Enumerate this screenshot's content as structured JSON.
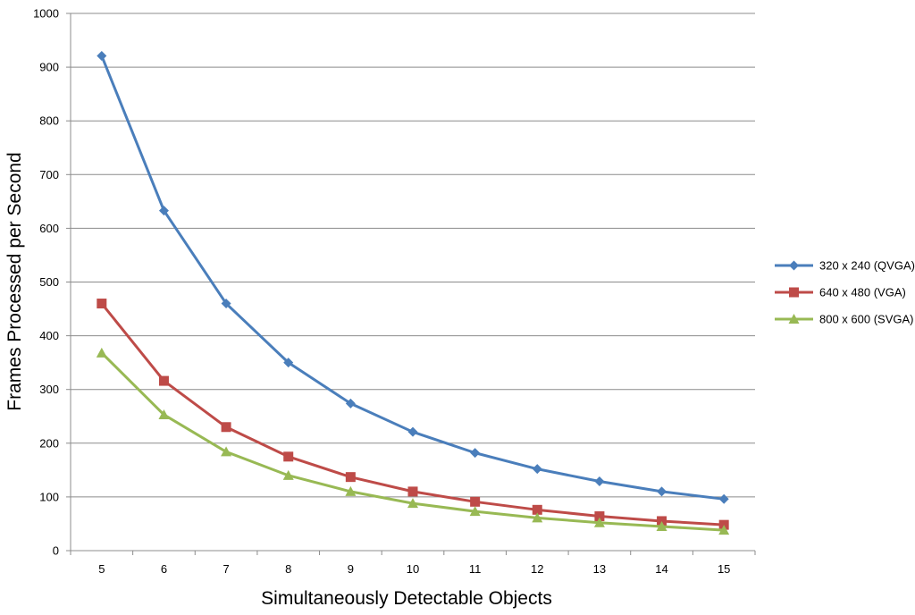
{
  "chart_data": {
    "type": "line",
    "title": "",
    "xlabel": "Simultaneously Detectable Objects",
    "ylabel": "Frames Processed per Second",
    "categories": [
      "5",
      "6",
      "7",
      "8",
      "9",
      "10",
      "11",
      "12",
      "13",
      "14",
      "15"
    ],
    "ylim": [
      0,
      1000
    ],
    "yticks": [
      "0",
      "100",
      "200",
      "300",
      "400",
      "500",
      "600",
      "700",
      "800",
      "900",
      "1000"
    ],
    "grid": true,
    "legend_position": "right",
    "series": [
      {
        "name": "320 x 240 (QVGA)",
        "color": "#4a7ebb",
        "marker": "diamond",
        "values": [
          921,
          633,
          460,
          350,
          274,
          221,
          182,
          152,
          129,
          110,
          96
        ]
      },
      {
        "name": "640 x 480 (VGA)",
        "color": "#be4b48",
        "marker": "square",
        "values": [
          460,
          316,
          230,
          175,
          137,
          110,
          91,
          76,
          64,
          55,
          48
        ]
      },
      {
        "name": "800 x 600 (SVGA)",
        "color": "#98b954",
        "marker": "triangle",
        "values": [
          368,
          253,
          184,
          140,
          110,
          88,
          73,
          61,
          52,
          45,
          38
        ]
      }
    ]
  }
}
